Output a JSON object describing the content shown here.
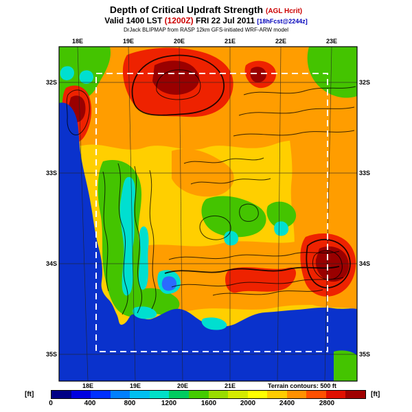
{
  "header": {
    "title_main": "Depth of Critical Updraft Strength",
    "title_qualifier": "(AGL Hcrit)",
    "valid_prefix": "Valid 1400 LST",
    "valid_zulu": "(1200Z)",
    "valid_date": "FRI 22 Jul 2011",
    "valid_forecast": "[18hFcst@2244z]",
    "model_line": "DrJack BLIPMAP from RASP 12km GFS-initiated WRF-ARW model"
  },
  "map": {
    "top_ticks": [
      "18E",
      "19E",
      "20E",
      "21E",
      "22E",
      "23E"
    ],
    "bottom_ticks": [
      "18E",
      "19E",
      "20E",
      "21E"
    ],
    "left_ticks": [
      "32S",
      "33S",
      "34S",
      "35S"
    ],
    "right_ticks": [
      "32S",
      "33S",
      "34S",
      "35S"
    ],
    "terrain_note": "Terrain contours: 500 ft"
  },
  "colorbar": {
    "unit_left": "[ft]",
    "unit_right": "[ft]",
    "labels": [
      "0",
      "400",
      "800",
      "1200",
      "1600",
      "2000",
      "2400",
      "2800"
    ],
    "colors": [
      "#000085",
      "#0000e0",
      "#0030ff",
      "#0080ff",
      "#00c0f0",
      "#00e0c8",
      "#00cc60",
      "#44cc00",
      "#99dd00",
      "#d4ea00",
      "#ffff00",
      "#ffcc00",
      "#ff9100",
      "#ff5000",
      "#e01000",
      "#a00000"
    ]
  },
  "palette": {
    "ocean": "#0a32cc",
    "land_base": "#ffcf00",
    "orange_zone": "#ff9d00",
    "green_zone": "#44c400",
    "red_zone": "#ee2200",
    "dark_red_zone": "#9a0000",
    "cyan_zone": "#00dfd0",
    "domain_box": "#ffffff",
    "contour": "#000000"
  },
  "chart_data": {
    "type": "heatmap",
    "title": "Depth of Critical Updraft Strength (AGL Hcrit)",
    "subtitle": "Valid 1400 LST (1200Z) FRI 22 Jul 2011 [18hFcst@2244z]",
    "source": "DrJack BLIPMAP from RASP 12km GFS-initiated WRF-ARW model",
    "units": "ft",
    "x_ticks": [
      "18E",
      "19E",
      "20E",
      "21E",
      "22E",
      "23E"
    ],
    "y_ticks": [
      "32S",
      "33S",
      "34S",
      "35S"
    ],
    "colorbar_levels": [
      0,
      400,
      800,
      1200,
      1600,
      2000,
      2400,
      2800
    ],
    "annotations": [
      "Terrain contours: 500 ft"
    ],
    "field_summary": "Blue (near 0 ft) over ocean along the west and south edges; red to dark-red maxima (2400-2800+ ft) over the north-central area, a narrow west ridge, and the lower-right; broad yellow-orange 1600-2400 ft over the interior; green-cyan 400-1200 ft bands along the western mountain ranges and coastal fringe; white dashed inner-domain rectangle; black terrain contours overlaid every 500 ft."
  }
}
